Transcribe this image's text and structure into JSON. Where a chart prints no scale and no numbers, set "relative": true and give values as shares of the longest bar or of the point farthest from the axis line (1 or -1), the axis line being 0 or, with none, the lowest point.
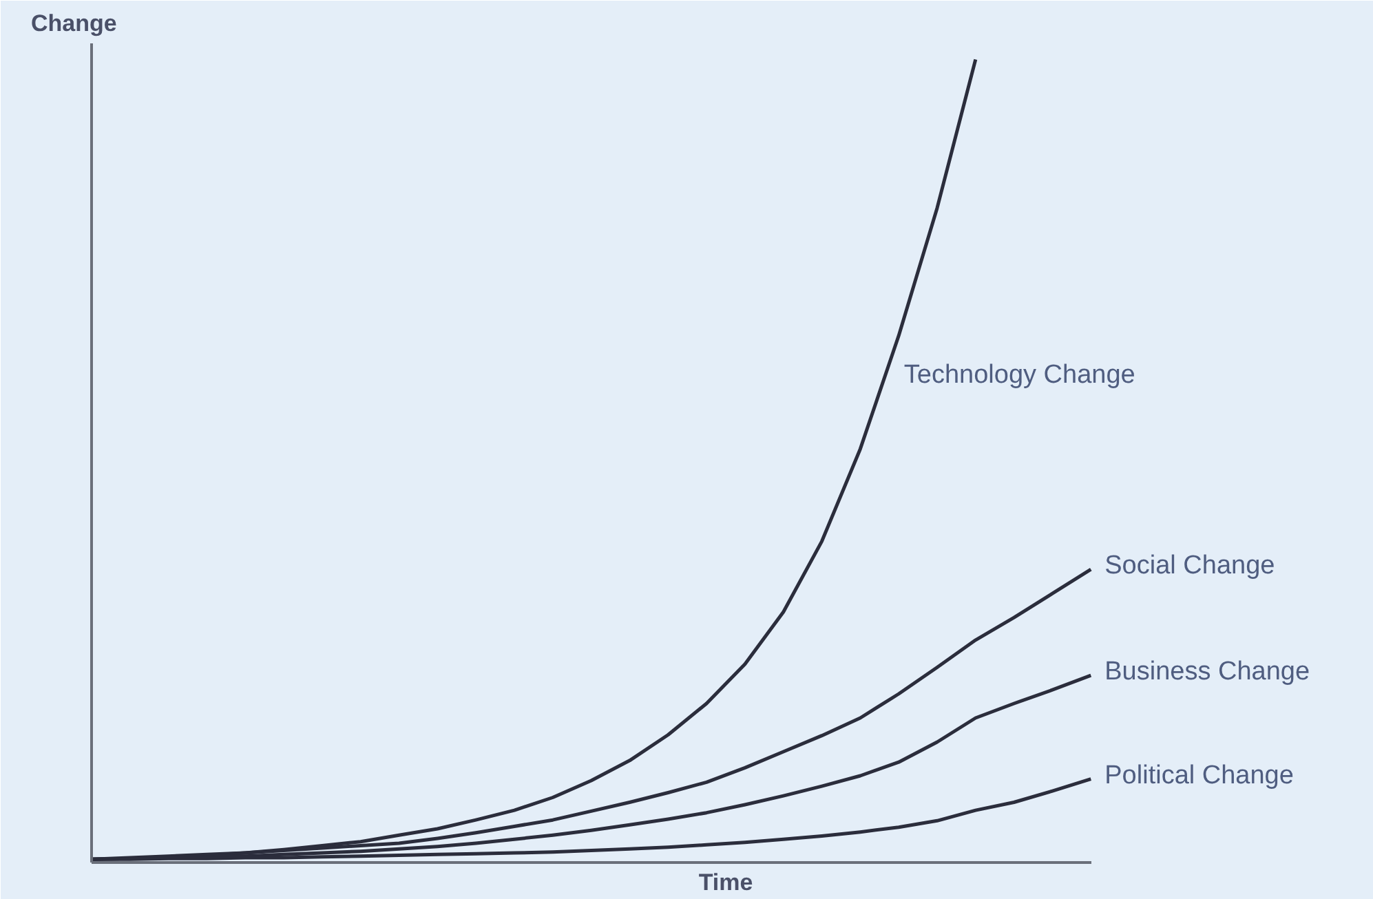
{
  "chart_data": {
    "type": "line",
    "relative": true,
    "xlabel": "Time",
    "ylabel": "Change",
    "categories": [
      null,
      null,
      null,
      null,
      null,
      null,
      null,
      null,
      null,
      null,
      null,
      null,
      null,
      null,
      null,
      null,
      null,
      null,
      null,
      null,
      null,
      null,
      null,
      null,
      null,
      null,
      null
    ],
    "legend": false,
    "marker": "none",
    "line_style": "solid",
    "series": [
      {
        "name": "Technology Change",
        "color": "#2b2d3c",
        "values": [
          0.004,
          0.005,
          0.007,
          0.009,
          0.012,
          0.016,
          0.021,
          0.026,
          0.034,
          0.042,
          0.053,
          0.065,
          0.081,
          0.102,
          0.127,
          0.159,
          0.198,
          0.247,
          0.312,
          0.4,
          0.515,
          0.656,
          0.815,
          1.0,
          null,
          null,
          null
        ]
      },
      {
        "name": "Social Change",
        "color": "#2b2d3c",
        "values": [
          0.004,
          0.006,
          0.008,
          0.01,
          0.012,
          0.015,
          0.018,
          0.021,
          0.024,
          0.03,
          0.037,
          0.045,
          0.053,
          0.064,
          0.075,
          0.087,
          0.1,
          0.118,
          0.138,
          0.158,
          0.18,
          0.21,
          0.243,
          0.277,
          0.305,
          0.335,
          0.365
        ]
      },
      {
        "name": "Business Change",
        "color": "#2b2d3c",
        "values": [
          0.004,
          0.005,
          0.006,
          0.007,
          0.008,
          0.01,
          0.012,
          0.014,
          0.017,
          0.02,
          0.024,
          0.029,
          0.034,
          0.04,
          0.047,
          0.054,
          0.062,
          0.072,
          0.083,
          0.095,
          0.108,
          0.125,
          0.15,
          0.18,
          0.198,
          0.215,
          0.233
        ]
      },
      {
        "name": "Political Change",
        "color": "#2b2d3c",
        "values": [
          0.004,
          0.004,
          0.005,
          0.005,
          0.006,
          0.006,
          0.007,
          0.008,
          0.009,
          0.01,
          0.011,
          0.012,
          0.013,
          0.015,
          0.017,
          0.019,
          0.022,
          0.025,
          0.029,
          0.033,
          0.038,
          0.044,
          0.052,
          0.065,
          0.075,
          0.089,
          0.104
        ]
      }
    ]
  }
}
